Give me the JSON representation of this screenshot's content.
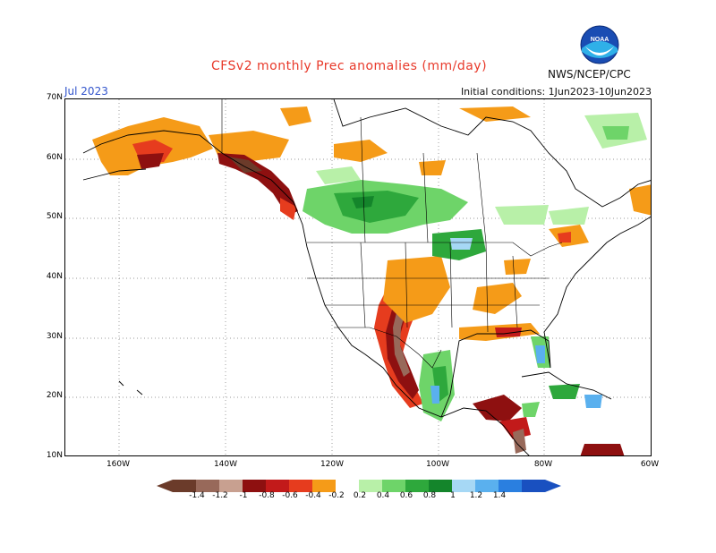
{
  "header": {
    "title": "CFSv2 monthly Prec anomalies (mm/day)",
    "organization": "NWS/NCEP/CPC",
    "month": "Jul 2023",
    "initial_conditions": "Initial conditions: 1Jun2023-10Jun2023",
    "logo_icon": "noaa-logo-icon"
  },
  "axes": {
    "lat_labels": [
      "70N",
      "60N",
      "50N",
      "40N",
      "30N",
      "20N",
      "10N"
    ],
    "lon_labels": [
      "160W",
      "140W",
      "120W",
      "100W",
      "80W",
      "60W"
    ]
  },
  "legend": {
    "labels": [
      "-1.4",
      "-1.2",
      "-1",
      "-0.8",
      "-0.6",
      "-0.4",
      "-0.2",
      "0.2",
      "0.4",
      "0.6",
      "0.8",
      "1",
      "1.2",
      "1.4"
    ],
    "colors": [
      "#6b3b2a",
      "#98695a",
      "#c8a090",
      "#8e1010",
      "#c21a1a",
      "#e63c1e",
      "#f59b18",
      "#ffffff",
      "#b8f0a8",
      "#6ed469",
      "#2ea83c",
      "#14852b",
      "#a6d8f5",
      "#5ab0ee",
      "#2a7fe0",
      "#1950c0"
    ]
  },
  "colors": {
    "title_red": "#e8392a",
    "month_blue": "#3355cc"
  }
}
